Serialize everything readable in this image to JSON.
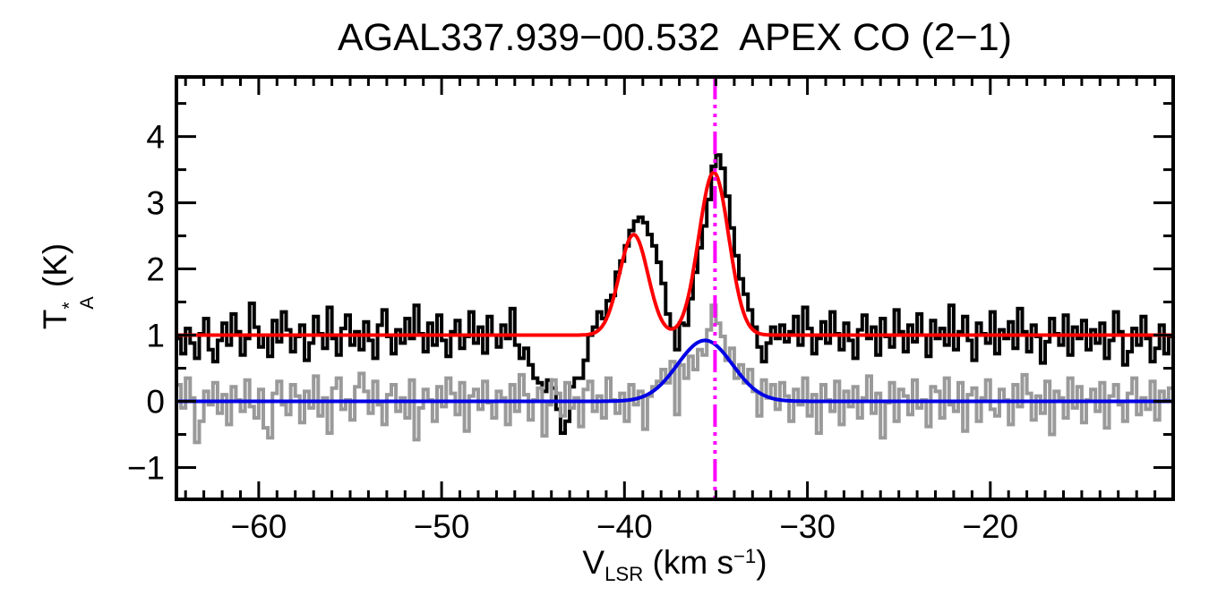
{
  "chart_data": {
    "type": "line",
    "title": "AGAL337.939−00.532  APEX CO (2−1)",
    "xlabel_text": "V_LSR (km s^−1)",
    "ylabel_text": "T_A* (K)",
    "xlabel_parts": {
      "symbol": "V",
      "subscript": "LSR",
      "unit_open": " (km s",
      "unit_exponent": "−1",
      "unit_close": ")"
    },
    "ylabel_parts": {
      "symbol": "T",
      "superscript": "*",
      "subscript": "A",
      "unit": " (K)"
    },
    "x_range": [
      -64.5,
      -10.0
    ],
    "y_range": [
      -1.48,
      4.9
    ],
    "x_major_ticks": [
      -60,
      -50,
      -40,
      -30,
      -20
    ],
    "x_tick_labels": [
      "−60",
      "−50",
      "−40",
      "−30",
      "−20"
    ],
    "x_minor_tick_step": 1,
    "y_major_ticks": [
      -1,
      0,
      1,
      2,
      3,
      4
    ],
    "y_tick_labels": [
      "−1",
      "0",
      "1",
      "2",
      "3",
      "4"
    ],
    "y_minor_tick_step": 0.5,
    "grid": false,
    "legend": "none",
    "frame_color": "#000000",
    "series": [
      {
        "name": "observed-co-spectrum",
        "color": "#000000",
        "style": "histogram",
        "line_width": 4,
        "baseline_level": 1.0,
        "v_start": -64.5,
        "dv": 0.25,
        "values": [
          0.95,
          0.72,
          1.1,
          0.88,
          0.65,
          1.02,
          1.25,
          0.78,
          0.6,
          0.92,
          1.18,
          0.85,
          1.32,
          1.05,
          0.7,
          0.95,
          1.48,
          1.12,
          0.82,
          1.0,
          0.68,
          1.22,
          0.9,
          1.35,
          1.08,
          0.75,
          0.98,
          1.15,
          0.62,
          0.88,
          1.28,
          1.02,
          0.8,
          1.42,
          0.95,
          0.7,
          1.1,
          1.3,
          0.85,
          1.05,
          0.78,
          1.2,
          0.92,
          0.65,
          1.15,
          1.38,
          0.98,
          0.72,
          1.08,
          0.88,
          1.25,
          0.95,
          1.45,
          1.02,
          0.75,
          1.18,
          0.85,
          1.3,
          0.92,
          0.68,
          1.05,
          1.22,
          0.8,
          0.98,
          1.35,
          0.88,
          1.12,
          0.73,
          1.28,
          1.0,
          0.82,
          1.15,
          0.95,
          1.4,
          0.85,
          0.65,
          0.8,
          0.55,
          0.35,
          0.28,
          0.15,
          0.32,
          0.2,
          -0.12,
          -0.48,
          -0.3,
          0.22,
          0.35,
          0.35,
          0.62,
          1.0,
          1.12,
          1.35,
          1.25,
          1.52,
          1.6,
          1.95,
          2.12,
          2.35,
          2.58,
          2.72,
          2.78,
          2.7,
          2.52,
          2.35,
          2.1,
          1.78,
          1.32,
          1.1,
          0.78,
          1.18,
          1.15,
          1.55,
          1.95,
          2.32,
          2.65,
          3.05,
          3.55,
          3.72,
          3.52,
          3.1,
          2.62,
          2.2,
          1.85,
          1.62,
          1.38,
          1.12,
          0.82,
          0.6,
          0.88,
          1.12,
          0.95,
          1.15,
          0.9,
          1.05,
          1.28,
          0.85,
          1.42,
          1.1,
          0.72,
          0.95,
          1.2,
          0.88,
          1.35,
          1.02,
          0.78,
          1.18,
          0.92,
          0.65,
          1.08,
          1.3,
          0.95,
          1.12,
          0.7,
          1.25,
          0.98,
          0.82,
          1.38,
          1.05,
          0.75,
          1.15,
          0.9,
          1.32,
          1.0,
          0.68,
          1.22,
          0.95,
          1.1,
          0.85,
          1.45,
          0.78,
          1.05,
          1.28,
          0.92,
          0.62,
          1.18,
          1.02,
          0.88,
          1.35,
          0.72,
          1.08,
          0.95,
          1.2,
          0.8,
          1.4,
          1.05,
          0.75,
          1.15,
          0.98,
          0.58,
          0.9,
          1.25,
          1.02,
          0.85,
          1.3,
          0.7,
          1.12,
          0.95,
          1.22,
          0.78,
          1.08,
          0.88,
          1.18,
          0.65,
          0.92,
          1.35,
          1.05,
          0.55,
          0.75,
          1.1,
          0.85,
          1.28,
          0.95,
          0.6,
          0.8,
          1.15,
          0.72,
          0.98
        ]
      },
      {
        "name": "reference-spectrum",
        "color": "#9a9a9a",
        "style": "histogram",
        "line_width": 4,
        "baseline_level": 0.0,
        "v_start": -64.5,
        "dv": 0.25,
        "values": [
          0.25,
          -0.1,
          0.35,
          0.05,
          -0.62,
          -0.3,
          0.15,
          -0.05,
          0.28,
          -0.18,
          0.1,
          -0.35,
          0.22,
          0.02,
          -0.15,
          0.32,
          -0.08,
          -0.25,
          0.18,
          -0.4,
          -0.55,
          0.12,
          0.3,
          -0.05,
          -0.2,
          0.25,
          0.08,
          -0.32,
          0.15,
          -0.1,
          0.38,
          -0.22,
          0.05,
          -0.48,
          0.2,
          0.35,
          -0.12,
          0.02,
          -0.28,
          0.22,
          0.42,
          0.15,
          -0.18,
          0.3,
          -0.05,
          -0.35,
          0.1,
          0.25,
          -0.15,
          0.05,
          -0.25,
          0.32,
          -0.58,
          -0.1,
          0.18,
          0.02,
          -0.3,
          0.22,
          -0.08,
          0.35,
          0.12,
          -0.2,
          0.28,
          -0.45,
          0.08,
          0.18,
          -0.12,
          0.3,
          -0.02,
          -0.25,
          0.15,
          0.05,
          -0.35,
          0.25,
          -0.15,
          0.4,
          0.1,
          -0.28,
          0.02,
          0.2,
          -0.52,
          -0.05,
          0.32,
          0.12,
          -0.22,
          0.28,
          -0.1,
          0.05,
          -0.38,
          0.18,
          0.3,
          -0.15,
          0.08,
          -0.25,
          0.35,
          0.02,
          -0.18,
          0.12,
          -0.3,
          0.25,
          -0.05,
          0.15,
          -0.42,
          0.08,
          0.22,
          0.3,
          0.48,
          0.28,
          0.6,
          -0.2,
          0.55,
          0.35,
          0.68,
          0.48,
          0.78,
          0.7,
          1.08,
          1.45,
          1.18,
          0.98,
          0.62,
          0.8,
          0.35,
          0.55,
          0.28,
          0.48,
          0.15,
          -0.22,
          0.32,
          0.05,
          0.25,
          -0.12,
          0.28,
          0.08,
          -0.3,
          0.18,
          -0.05,
          0.35,
          -0.22,
          0.1,
          -0.48,
          0.25,
          0.02,
          -0.15,
          0.3,
          -0.35,
          0.15,
          -0.08,
          0.22,
          -0.25,
          0.05,
          0.38,
          -0.18,
          0.12,
          -0.55,
          -0.02,
          0.28,
          -0.3,
          0.18,
          0.08,
          -0.2,
          0.32,
          -0.1,
          0.02,
          -0.38,
          0.22,
          0.15,
          -0.25,
          0.35,
          -0.05,
          -0.15,
          0.28,
          -0.45,
          0.1,
          0.2,
          -0.3,
          0.05,
          0.32,
          -0.12,
          -0.22,
          0.18,
          0.02,
          -0.35,
          0.25,
          -0.08,
          0.4,
          0.12,
          -0.28,
          0.08,
          -0.18,
          0.3,
          -0.5,
          0.15,
          0.05,
          -0.25,
          0.35,
          -0.1,
          0.22,
          -0.32,
          0.02,
          0.18,
          -0.15,
          0.28,
          -0.4,
          0.08,
          0.25,
          -0.05,
          -0.3,
          0.12,
          0.35,
          -0.2,
          0.05,
          -0.12,
          0.3,
          -0.28,
          0.15,
          0.02,
          0.2
        ]
      },
      {
        "name": "gaussian-fit-reference",
        "color": "#0000e6",
        "style": "smooth",
        "line_width": 4,
        "baseline": 0.0,
        "gaussians": [
          {
            "center": -35.6,
            "amplitude": 0.92,
            "sigma": 1.5
          }
        ]
      },
      {
        "name": "gaussian-fit-main",
        "color": "#ff0000",
        "style": "smooth",
        "line_width": 4,
        "baseline": 1.0,
        "gaussians": [
          {
            "center": -39.5,
            "amplitude": 1.52,
            "sigma": 0.78
          },
          {
            "center": -35.12,
            "amplitude": 2.46,
            "sigma": 0.82
          }
        ]
      }
    ],
    "marker_line": {
      "x": -35.05,
      "color": "#ff00ff",
      "style": "dash-dot-dot-dot",
      "dash_pattern": [
        25,
        6,
        4,
        6,
        4,
        6,
        4,
        6
      ],
      "line_width": 4
    }
  }
}
